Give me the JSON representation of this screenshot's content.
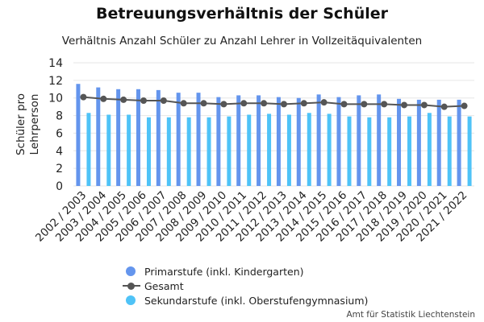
{
  "title": "Betreuungsverhältnis der Schüler",
  "subtitle": "Verhältnis Anzahl Schüler zu Anzahl Lehrer in Vollzeitäquivalenten",
  "source": "Amt für Statistik Liechtenstein",
  "colors": {
    "primar": "#6495ED",
    "sekundar": "#4FC3F7",
    "gesamt": "#555555",
    "grid": "#e6e6e6"
  },
  "chart_data": {
    "type": "bar",
    "title": "Betreuungsverhältnis der Schüler",
    "subtitle": "Verhältnis Anzahl Schüler zu Anzahl Lehrer in Vollzeitäquivalenten",
    "ylabel": "Schüler pro Lehrperson",
    "ylabel_lines": [
      "Schüler pro",
      "Lehrperson"
    ],
    "xlabel": "",
    "ylim": [
      0,
      14
    ],
    "yticks": [
      0,
      2,
      4,
      6,
      8,
      10,
      12,
      14
    ],
    "grid": true,
    "legend_position": "bottom",
    "categories": [
      "2002 / 2003",
      "2003 / 2004",
      "2004 / 2005",
      "2005 / 2006",
      "2006 / 2007",
      "2007 / 2008",
      "2008 / 2009",
      "2009 / 2010",
      "2010 / 2011",
      "2011 / 2012",
      "2012 / 2013",
      "2013 / 2014",
      "2014 / 2015",
      "2015 / 2016",
      "2016 / 2017",
      "2017 / 2018",
      "2018 / 2019",
      "2019 / 2020",
      "2020 / 2021",
      "2021 / 2022"
    ],
    "series": [
      {
        "name": "Primarstufe (inkl. Kindergarten)",
        "type": "bar",
        "values": [
          11.6,
          11.2,
          11.0,
          11.0,
          10.9,
          10.6,
          10.6,
          10.1,
          10.3,
          10.3,
          10.1,
          10.0,
          10.4,
          10.1,
          10.3,
          10.4,
          9.9,
          9.8,
          9.8,
          9.8
        ]
      },
      {
        "name": "Gesamt",
        "type": "line",
        "values": [
          10.1,
          9.9,
          9.8,
          9.7,
          9.7,
          9.4,
          9.4,
          9.3,
          9.4,
          9.4,
          9.3,
          9.4,
          9.5,
          9.3,
          9.3,
          9.3,
          9.2,
          9.2,
          9.0,
          9.1
        ]
      },
      {
        "name": "Sekundarstufe (inkl. Oberstufengymnasium)",
        "type": "bar",
        "values": [
          8.3,
          8.1,
          8.1,
          7.8,
          7.8,
          7.8,
          7.8,
          7.9,
          8.1,
          8.2,
          8.1,
          8.3,
          8.2,
          7.9,
          7.8,
          7.8,
          7.9,
          8.3,
          7.9,
          7.9
        ]
      }
    ]
  }
}
